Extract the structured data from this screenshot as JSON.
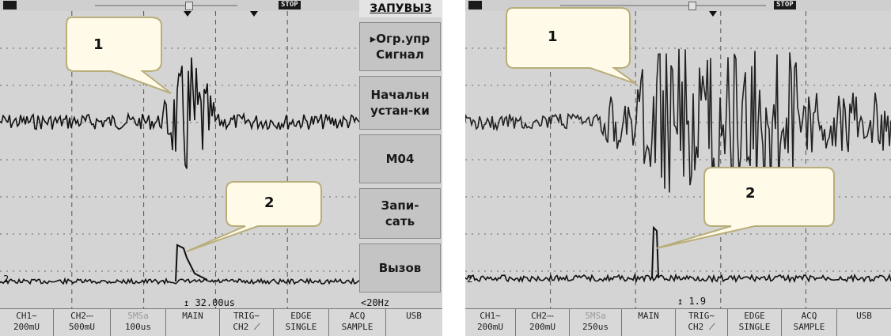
{
  "left_scope": {
    "top_badge_left": "",
    "top_badge_right": "STOP",
    "callout_1": "1",
    "callout_2": "2",
    "menu": {
      "header": "ЗАПУВЫЗ",
      "items": [
        {
          "lines": [
            "▸Огр.упр",
            "Сигнал"
          ]
        },
        {
          "lines": [
            "Начальн",
            "устан-ки"
          ]
        },
        {
          "lines": [
            "М04"
          ]
        },
        {
          "lines": [
            "Запи-",
            "сать"
          ]
        },
        {
          "lines": [
            "Вызов"
          ]
        }
      ]
    },
    "time_readout": "↥ 32.00us",
    "freq_readout": "<20Hz",
    "channel_2_marker": "2",
    "bottom": [
      {
        "l1": "CH1∼",
        "l2": "200mU"
      },
      {
        "l1": "CH2⎓",
        "l2": "500mU"
      },
      {
        "l1": "5MSa",
        "l2": "100us"
      },
      {
        "l1": "MAIN",
        "l2": ""
      },
      {
        "l1": "TRIG∼",
        "l2": "CH2 ⟋"
      },
      {
        "l1": "EDGE",
        "l2": "SINGLE"
      },
      {
        "l1": "ACQ",
        "l2": "SAMPLE"
      },
      {
        "l1": "USB",
        "l2": ""
      }
    ]
  },
  "right_scope": {
    "top_badge_right": "STOP",
    "callout_1": "1",
    "callout_2": "2",
    "time_readout": "↥ 1.9",
    "channel_2_marker": "2",
    "bottom": [
      {
        "l1": "CH1∼",
        "l2": "200mU"
      },
      {
        "l1": "CH2⎓",
        "l2": "200mU"
      },
      {
        "l1": "5MSa",
        "l2": "250us"
      },
      {
        "l1": "MAIN",
        "l2": ""
      },
      {
        "l1": "TRIG∼",
        "l2": "CH2 ⟋"
      },
      {
        "l1": "EDGE",
        "l2": "SINGLE"
      },
      {
        "l1": "ACQ",
        "l2": "SAMPLE"
      },
      {
        "l1": "USB",
        "l2": ""
      }
    ]
  }
}
